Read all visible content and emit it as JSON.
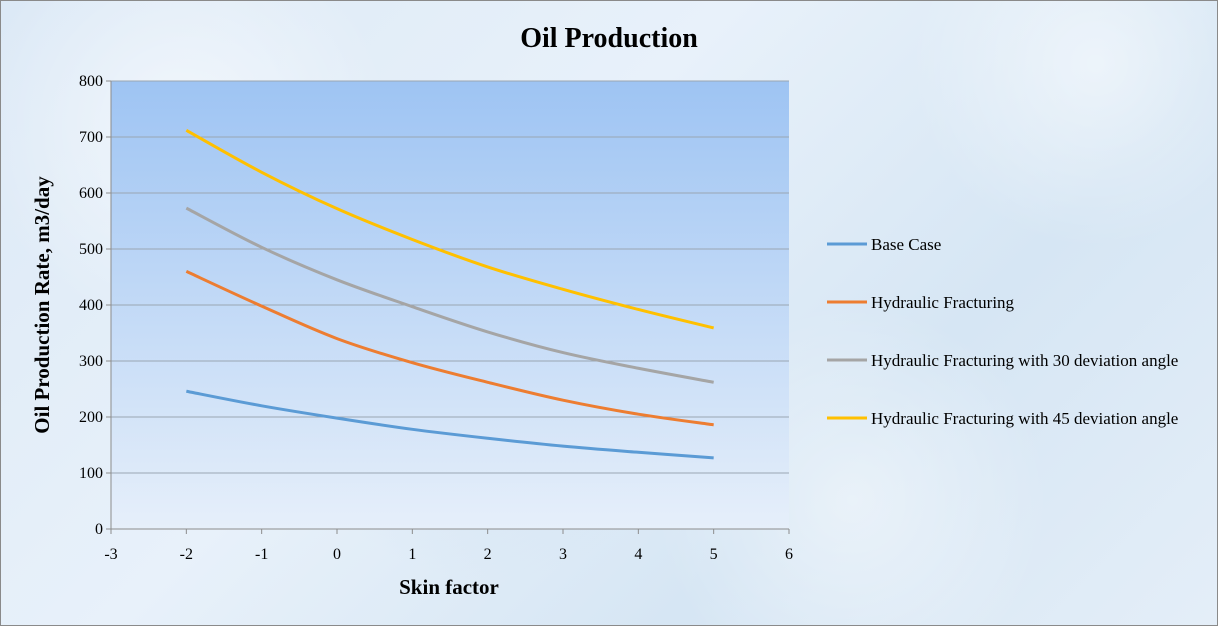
{
  "chart_data": {
    "type": "line",
    "title": "Oil Production",
    "xlabel": "Skin factor",
    "ylabel": "Oil Production Rate, m3/day",
    "xlim": [
      -3,
      6
    ],
    "ylim": [
      0,
      800
    ],
    "xticks": [
      -3,
      -2,
      -1,
      0,
      1,
      2,
      3,
      4,
      5,
      6
    ],
    "yticks": [
      0,
      100,
      200,
      300,
      400,
      500,
      600,
      700,
      800
    ],
    "grid": true,
    "legend_position": "right",
    "x": [
      -2,
      -1,
      0,
      1,
      2,
      3,
      4,
      5
    ],
    "series": [
      {
        "name": "Base Case",
        "color": "#5b9bd5",
        "values": [
          246,
          220,
          198,
          178,
          162,
          148,
          137,
          127
        ]
      },
      {
        "name": "Hydraulic Fracturing",
        "color": "#ed7d31",
        "values": [
          460,
          398,
          340,
          297,
          262,
          230,
          205,
          186
        ]
      },
      {
        "name": "Hydraulic Fracturing with 30 deviation angle",
        "color": "#a5a5a5",
        "values": [
          573,
          503,
          445,
          397,
          352,
          315,
          287,
          262
        ]
      },
      {
        "name": "Hydraulic Fracturing with 45 deviation angle",
        "color": "#ffc000",
        "values": [
          712,
          637,
          572,
          517,
          468,
          428,
          392,
          359
        ]
      }
    ]
  }
}
